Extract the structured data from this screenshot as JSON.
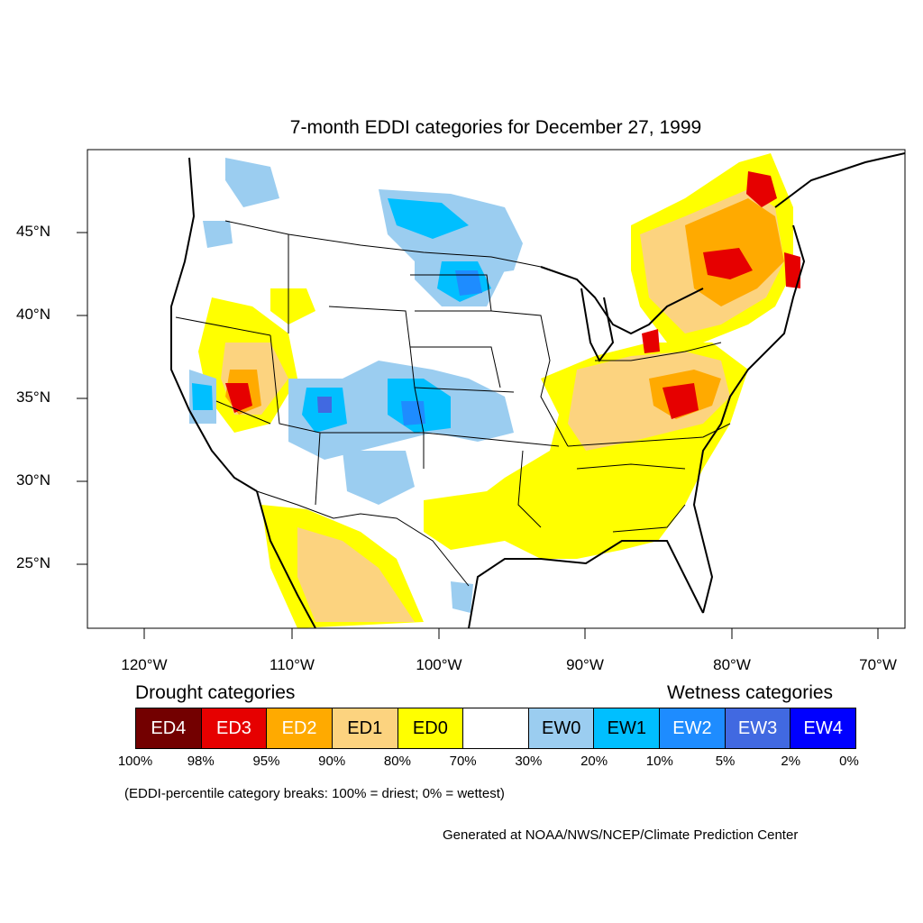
{
  "title": "7-month EDDI categories for December 27, 1999",
  "lat_labels": [
    "45°N",
    "40°N",
    "35°N",
    "30°N",
    "25°N"
  ],
  "lon_labels": [
    "120°W",
    "110°W",
    "100°W",
    "90°W",
    "80°W",
    "70°W"
  ],
  "legend": {
    "drought_heading": "Drought categories",
    "wetness_heading": "Wetness categories",
    "categories": [
      {
        "label": "ED4",
        "color": "#730000",
        "text_color": "#ffffff"
      },
      {
        "label": "ED3",
        "color": "#e60000",
        "text_color": "#ffffff"
      },
      {
        "label": "ED2",
        "color": "#ffaa00",
        "text_color": "#ffffff"
      },
      {
        "label": "ED1",
        "color": "#fcd37f",
        "text_color": "#000000"
      },
      {
        "label": "ED0",
        "color": "#ffff00",
        "text_color": "#000000"
      },
      {
        "label": "",
        "color": "#ffffff",
        "text_color": "#000000"
      },
      {
        "label": "EW0",
        "color": "#9bcdf0",
        "text_color": "#000000"
      },
      {
        "label": "EW1",
        "color": "#00bfff",
        "text_color": "#000000"
      },
      {
        "label": "EW2",
        "color": "#1e8cff",
        "text_color": "#ffffff"
      },
      {
        "label": "EW3",
        "color": "#4169e1",
        "text_color": "#ffffff"
      },
      {
        "label": "EW4",
        "color": "#0000ff",
        "text_color": "#ffffff"
      }
    ],
    "percentile_breaks": [
      "100%",
      "98%",
      "95%",
      "90%",
      "80%",
      "70%",
      "30%",
      "20%",
      "10%",
      "5%",
      "2%",
      "0%"
    ],
    "note": "(EDDI-percentile category breaks: 100% = driest; 0% = wettest)"
  },
  "credit": "Generated at NOAA/NWS/NCEP/Climate Prediction Center",
  "colors": {
    "ed0": "#ffff00",
    "ed1": "#fcd37f",
    "ed2": "#ffaa00",
    "ed3": "#e60000",
    "ew0": "#9bcdf0",
    "ew1": "#00bfff",
    "ew2": "#1e8cff",
    "ew3": "#4169e1"
  }
}
